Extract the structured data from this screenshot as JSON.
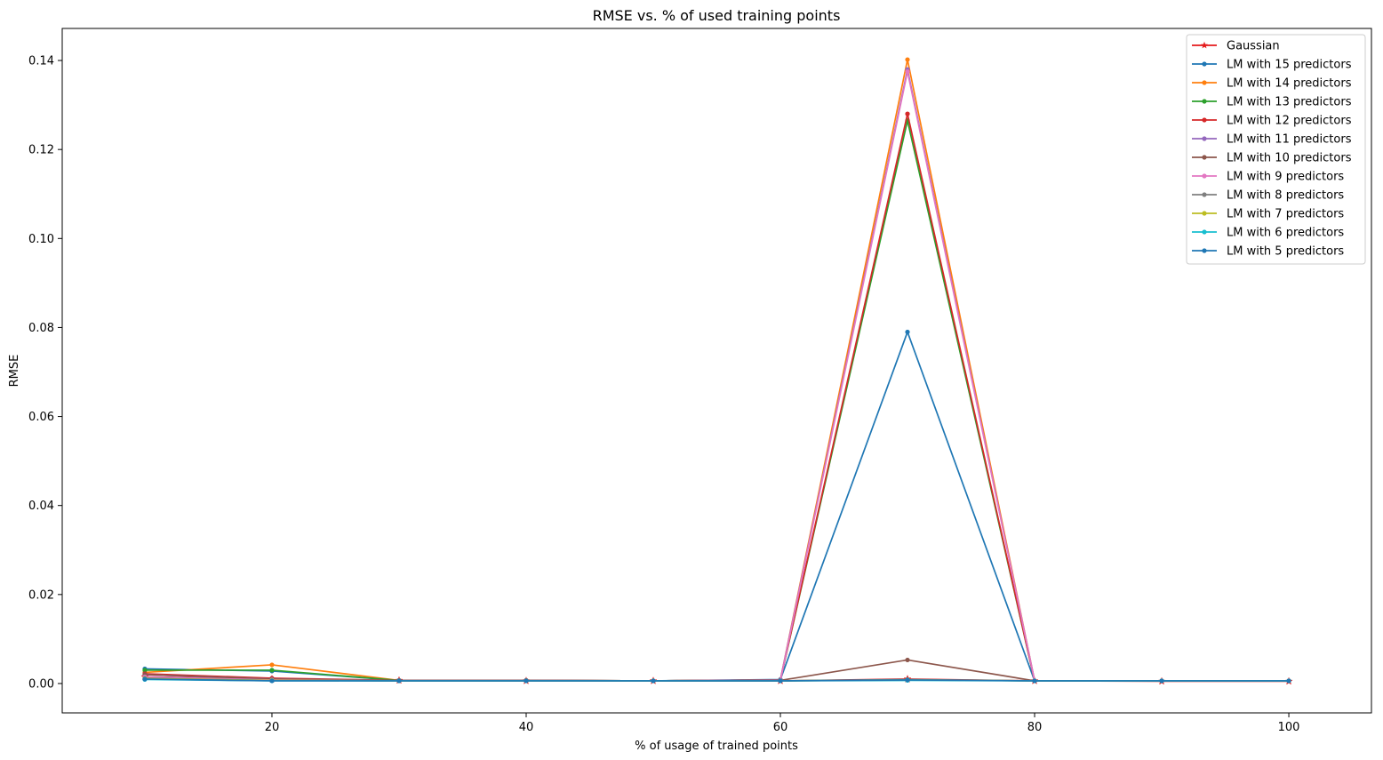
{
  "chart_data": {
    "type": "line",
    "title": "RMSE vs. % of used training points",
    "xlabel": "% of usage of trained points",
    "ylabel": "RMSE",
    "xlim": [
      3.5,
      106.5
    ],
    "ylim": [
      -0.0066,
      0.1472
    ],
    "x": [
      10,
      20,
      30,
      40,
      50,
      60,
      70,
      80,
      90,
      100
    ],
    "xticks": [
      20,
      40,
      60,
      80,
      100
    ],
    "yticks": [
      0.0,
      0.02,
      0.04,
      0.06,
      0.08,
      0.1,
      0.12,
      0.14
    ],
    "ytick_labels": [
      "0.00",
      "0.02",
      "0.04",
      "0.06",
      "0.08",
      "0.10",
      "0.12",
      "0.14"
    ],
    "legend_position": "top-right",
    "series": [
      {
        "name": "Gaussian",
        "color": "#e41a1c",
        "marker": "star",
        "values": [
          0.0015,
          0.001,
          0.0007,
          0.0006,
          0.0006,
          0.0006,
          0.001,
          0.0006,
          0.0005,
          0.0005
        ]
      },
      {
        "name": "LM with 15 predictors",
        "color": "#1f77b4",
        "marker": "dot",
        "values": [
          0.0033,
          0.0028,
          0.0007,
          0.0007,
          0.0006,
          0.0009,
          0.079,
          0.0006,
          0.0006,
          0.0006
        ]
      },
      {
        "name": "LM with 14 predictors",
        "color": "#ff7f0e",
        "marker": "dot",
        "values": [
          0.0025,
          0.0042,
          0.0007,
          0.0007,
          0.0006,
          0.0008,
          0.1402,
          0.0006,
          0.0006,
          0.0006
        ]
      },
      {
        "name": "LM with 13 predictors",
        "color": "#2ca02c",
        "marker": "dot",
        "values": [
          0.003,
          0.003,
          0.0007,
          0.0007,
          0.0006,
          0.0008,
          0.1265,
          0.0006,
          0.0006,
          0.0006
        ]
      },
      {
        "name": "LM with 12 predictors",
        "color": "#d62728",
        "marker": "dot",
        "values": [
          0.0022,
          0.0012,
          0.0007,
          0.0007,
          0.0006,
          0.0008,
          0.128,
          0.0006,
          0.0006,
          0.0006
        ]
      },
      {
        "name": "LM with 11 predictors",
        "color": "#9467bd",
        "marker": "dot",
        "values": [
          0.002,
          0.001,
          0.0007,
          0.0007,
          0.0006,
          0.0008,
          0.138,
          0.0006,
          0.0006,
          0.0006
        ]
      },
      {
        "name": "LM with 10 predictors",
        "color": "#8c564b",
        "marker": "dot",
        "values": [
          0.002,
          0.001,
          0.0007,
          0.0007,
          0.0006,
          0.0007,
          0.0053,
          0.0006,
          0.0006,
          0.0006
        ]
      },
      {
        "name": "LM with 9 predictors",
        "color": "#e377c2",
        "marker": "dot",
        "values": [
          0.0015,
          0.0008,
          0.0006,
          0.0006,
          0.0006,
          0.0006,
          0.1375,
          0.0006,
          0.0006,
          0.0006
        ]
      },
      {
        "name": "LM with 8 predictors",
        "color": "#7f7f7f",
        "marker": "dot",
        "values": [
          0.0012,
          0.0007,
          0.0006,
          0.0006,
          0.0006,
          0.0006,
          0.0009,
          0.0006,
          0.0006,
          0.0006
        ]
      },
      {
        "name": "LM with 7 predictors",
        "color": "#bcbd22",
        "marker": "dot",
        "values": [
          0.0011,
          0.0007,
          0.0006,
          0.0006,
          0.0006,
          0.0006,
          0.0008,
          0.0006,
          0.0006,
          0.0006
        ]
      },
      {
        "name": "LM with 6 predictors",
        "color": "#17becf",
        "marker": "dot",
        "values": [
          0.0009,
          0.0006,
          0.0006,
          0.0006,
          0.0006,
          0.0006,
          0.0007,
          0.0006,
          0.0006,
          0.0006
        ]
      },
      {
        "name": "LM with 5 predictors",
        "color": "#1f77b4",
        "marker": "dot",
        "values": [
          0.001,
          0.0006,
          0.0006,
          0.0006,
          0.0006,
          0.0006,
          0.0008,
          0.0006,
          0.0006,
          0.0006
        ]
      }
    ]
  }
}
